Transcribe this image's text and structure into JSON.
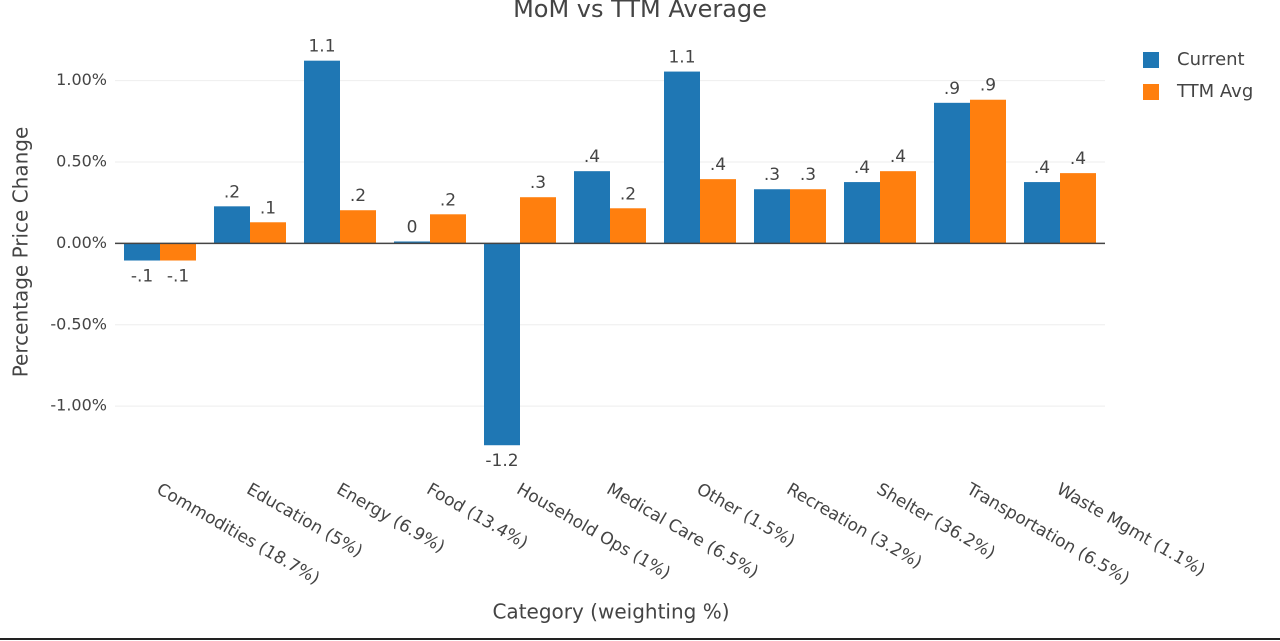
{
  "chart_data": {
    "type": "bar",
    "title": "MoM vs TTM Average",
    "x_label": "Category (weighting %)",
    "y_label": "Percentage Price Change",
    "categories": [
      "Commodities (18.7%)",
      "Education (5%)",
      "Energy (6.9%)",
      "Food (13.4%)",
      "Household Ops (1%)",
      "Medical Care (6.5%)",
      "Other (1.5%)",
      "Recreation (3.2%)",
      "Shelter (36.2%)",
      "Transportation (6.5%)",
      "Waste Mgmt (1.1%)"
    ],
    "series": [
      {
        "name": "Current",
        "color": "#1f77b4",
        "values": [
          -0.105,
          0.228,
          1.123,
          0.012,
          -1.24,
          0.444,
          1.056,
          0.333,
          0.377,
          0.864,
          0.377
        ],
        "value_labels": [
          "-.1",
          ".2",
          "1.1",
          "0",
          "-1.2",
          ".4",
          "1.1",
          ".3",
          ".4",
          ".9",
          ".4"
        ]
      },
      {
        "name": "TTM Avg",
        "color": "#ff7f0e",
        "values": [
          -0.105,
          0.13,
          0.204,
          0.179,
          0.284,
          0.216,
          0.395,
          0.333,
          0.444,
          0.883,
          0.432
        ],
        "value_labels": [
          "-.1",
          ".1",
          ".2",
          ".2",
          ".3",
          ".2",
          ".4",
          ".3",
          ".4",
          ".9",
          ".4"
        ]
      }
    ],
    "ylim": [
      -1.3,
      1.25
    ],
    "yticks": [
      {
        "value": -1.0,
        "label": "-1.00%"
      },
      {
        "value": -0.5,
        "label": "-0.50%"
      },
      {
        "value": 0,
        "label": "0.00%"
      },
      {
        "value": 0.5,
        "label": "0.50%"
      },
      {
        "value": 1.0,
        "label": "1.00%"
      }
    ],
    "grid": true,
    "legend": "right"
  }
}
